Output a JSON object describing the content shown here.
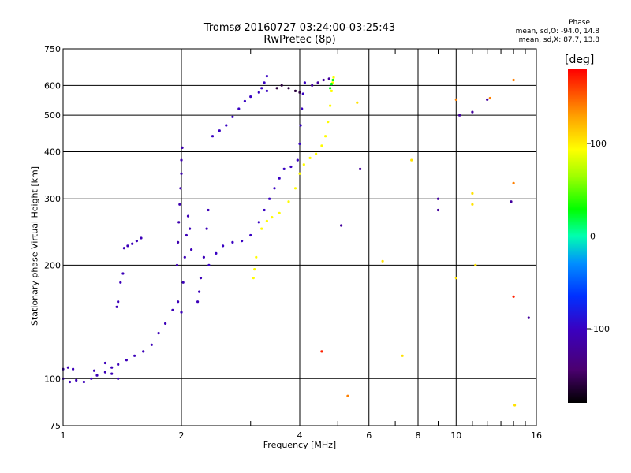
{
  "title": {
    "line1": "Tromsø 20160727 03:24:00-03:25:43",
    "line2": "RwPretec (8p)"
  },
  "phase_info": {
    "heading": "Phase",
    "line1": "mean, sd,O: -94.0, 14.8",
    "line2": "mean, sd,X:  87.7, 13.8"
  },
  "chart_data": {
    "type": "scatter",
    "title": "Tromsø 20160727 03:24:00-03:25:43",
    "subtitle": "RwPretec (8p)",
    "xlabel": "Frequency [MHz]",
    "ylabel": "Stationary phase Virtual Height [km]",
    "x_scale": "log",
    "y_scale": "log",
    "xlim": [
      1,
      16
    ],
    "ylim": [
      75,
      750
    ],
    "x_ticks": [
      1,
      2,
      4,
      6,
      8,
      10,
      16
    ],
    "y_ticks": [
      75,
      100,
      200,
      300,
      400,
      500,
      600,
      750
    ],
    "x_minor_ticks": [
      3,
      5,
      7,
      9,
      11,
      12,
      13,
      14,
      15
    ],
    "grid": true,
    "colorbar": {
      "label": "[deg]",
      "range": [
        -180,
        180
      ],
      "ticks": [
        -100,
        0,
        100
      ],
      "colormap": "rainbow: black-purple-blue-cyan-green-yellow-red"
    },
    "traces": [
      {
        "name": "",
        "phase": -105,
        "points": [
          [
            1.0,
            100
          ],
          [
            1.04,
            98
          ],
          [
            1.08,
            99
          ],
          [
            1.13,
            98
          ],
          [
            1.18,
            100
          ],
          [
            1.22,
            102
          ],
          [
            1.28,
            104
          ],
          [
            1.33,
            107
          ],
          [
            1.38,
            109
          ],
          [
            1.45,
            112
          ],
          [
            1.52,
            115
          ],
          [
            1.6,
            118
          ],
          [
            1.68,
            123
          ],
          [
            1.75,
            132
          ],
          [
            1.82,
            140
          ],
          [
            1.9,
            152
          ],
          [
            1.96,
            160
          ]
        ]
      },
      {
        "name": "",
        "phase": -105,
        "points": [
          [
            1.0,
            106
          ],
          [
            1.03,
            107
          ],
          [
            1.06,
            106
          ],
          [
            1.2,
            105
          ],
          [
            1.28,
            110
          ],
          [
            1.33,
            103
          ],
          [
            1.38,
            100
          ]
        ]
      },
      {
        "name": "",
        "phase": -105,
        "points": [
          [
            1.37,
            155
          ],
          [
            1.38,
            160
          ],
          [
            1.4,
            180
          ],
          [
            1.42,
            190
          ]
        ]
      },
      {
        "name": "",
        "phase": -105,
        "points": [
          [
            1.43,
            222
          ],
          [
            1.46,
            225
          ],
          [
            1.5,
            228
          ],
          [
            1.54,
            232
          ],
          [
            1.58,
            236
          ]
        ]
      },
      {
        "name": "",
        "phase": -110,
        "points": [
          [
            1.95,
            200
          ],
          [
            1.96,
            230
          ],
          [
            1.97,
            260
          ],
          [
            1.98,
            290
          ],
          [
            1.99,
            320
          ],
          [
            2.0,
            350
          ],
          [
            2.0,
            380
          ],
          [
            2.01,
            410
          ]
        ]
      },
      {
        "name": "",
        "phase": -105,
        "points": [
          [
            2.0,
            150
          ],
          [
            2.02,
            180
          ],
          [
            2.04,
            210
          ],
          [
            2.06,
            240
          ],
          [
            2.08,
            270
          ],
          [
            2.1,
            250
          ],
          [
            2.12,
            220
          ]
        ]
      },
      {
        "name": "",
        "phase": -105,
        "points": [
          [
            2.2,
            160
          ],
          [
            2.22,
            170
          ],
          [
            2.24,
            185
          ],
          [
            2.28,
            210
          ],
          [
            2.32,
            250
          ],
          [
            2.34,
            280
          ]
        ]
      },
      {
        "name": "",
        "phase": -100,
        "points": [
          [
            2.35,
            200
          ],
          [
            2.45,
            215
          ],
          [
            2.55,
            225
          ],
          [
            2.7,
            230
          ],
          [
            2.85,
            232
          ],
          [
            3.0,
            240
          ],
          [
            3.15,
            260
          ],
          [
            3.25,
            280
          ],
          [
            3.35,
            300
          ],
          [
            3.45,
            320
          ],
          [
            3.55,
            340
          ],
          [
            3.65,
            360
          ],
          [
            3.8,
            365
          ],
          [
            3.95,
            380
          ],
          [
            4.0,
            420
          ],
          [
            4.02,
            470
          ],
          [
            4.05,
            520
          ],
          [
            4.08,
            570
          ],
          [
            4.12,
            610
          ]
        ]
      },
      {
        "name": "",
        "phase": -100,
        "points": [
          [
            2.4,
            440
          ],
          [
            2.5,
            455
          ],
          [
            2.6,
            470
          ],
          [
            2.7,
            495
          ],
          [
            2.8,
            520
          ],
          [
            2.9,
            545
          ],
          [
            3.0,
            560
          ],
          [
            3.15,
            575
          ],
          [
            3.3,
            580
          ]
        ]
      },
      {
        "name": "",
        "phase": -100,
        "points": [
          [
            3.2,
            590
          ],
          [
            3.25,
            610
          ],
          [
            3.3,
            635
          ]
        ]
      },
      {
        "name": "",
        "phase": -160,
        "points": [
          [
            3.5,
            590
          ],
          [
            3.6,
            600
          ],
          [
            3.75,
            590
          ],
          [
            3.9,
            580
          ],
          [
            4.0,
            575
          ]
        ]
      },
      {
        "name": "",
        "phase": -120,
        "points": [
          [
            4.3,
            600
          ],
          [
            4.45,
            610
          ],
          [
            4.6,
            620
          ],
          [
            4.75,
            625
          ]
        ]
      },
      {
        "name": "",
        "phase": 95,
        "points": [
          [
            3.05,
            185
          ],
          [
            3.07,
            195
          ],
          [
            3.1,
            210
          ],
          [
            3.2,
            250
          ],
          [
            3.3,
            262
          ],
          [
            3.4,
            268
          ],
          [
            3.55,
            275
          ],
          [
            3.75,
            295
          ],
          [
            3.9,
            320
          ],
          [
            4.0,
            350
          ],
          [
            4.1,
            370
          ],
          [
            4.25,
            385
          ],
          [
            4.4,
            395
          ],
          [
            4.55,
            415
          ],
          [
            4.65,
            440
          ],
          [
            4.72,
            480
          ],
          [
            4.78,
            530
          ],
          [
            4.82,
            580
          ],
          [
            4.85,
            610
          ],
          [
            4.88,
            630
          ]
        ]
      },
      {
        "name": "",
        "phase": 25,
        "points": [
          [
            4.78,
            590
          ],
          [
            4.82,
            605
          ],
          [
            4.86,
            620
          ]
        ]
      },
      {
        "name": "",
        "phase": 140,
        "points": [
          [
            5.3,
            90
          ],
          [
            10.0,
            550
          ],
          [
            12.2,
            555
          ],
          [
            14.0,
            620
          ],
          [
            14.0,
            330
          ]
        ]
      },
      {
        "name": "",
        "phase": 105,
        "points": [
          [
            5.6,
            540
          ],
          [
            6.5,
            205
          ],
          [
            7.3,
            115
          ],
          [
            7.7,
            380
          ],
          [
            10.0,
            185
          ],
          [
            11.0,
            310
          ],
          [
            11.0,
            290
          ],
          [
            14.1,
            85
          ],
          [
            11.2,
            200
          ]
        ]
      },
      {
        "name": "",
        "phase": 170,
        "points": [
          [
            4.55,
            118
          ],
          [
            14.0,
            165
          ]
        ]
      },
      {
        "name": "",
        "phase": -120,
        "points": [
          [
            5.1,
            255
          ],
          [
            5.7,
            360
          ],
          [
            9.0,
            300
          ],
          [
            9.0,
            280
          ],
          [
            10.2,
            500
          ],
          [
            11.0,
            510
          ],
          [
            13.8,
            295
          ],
          [
            15.3,
            145
          ],
          [
            12.0,
            550
          ]
        ]
      }
    ]
  }
}
